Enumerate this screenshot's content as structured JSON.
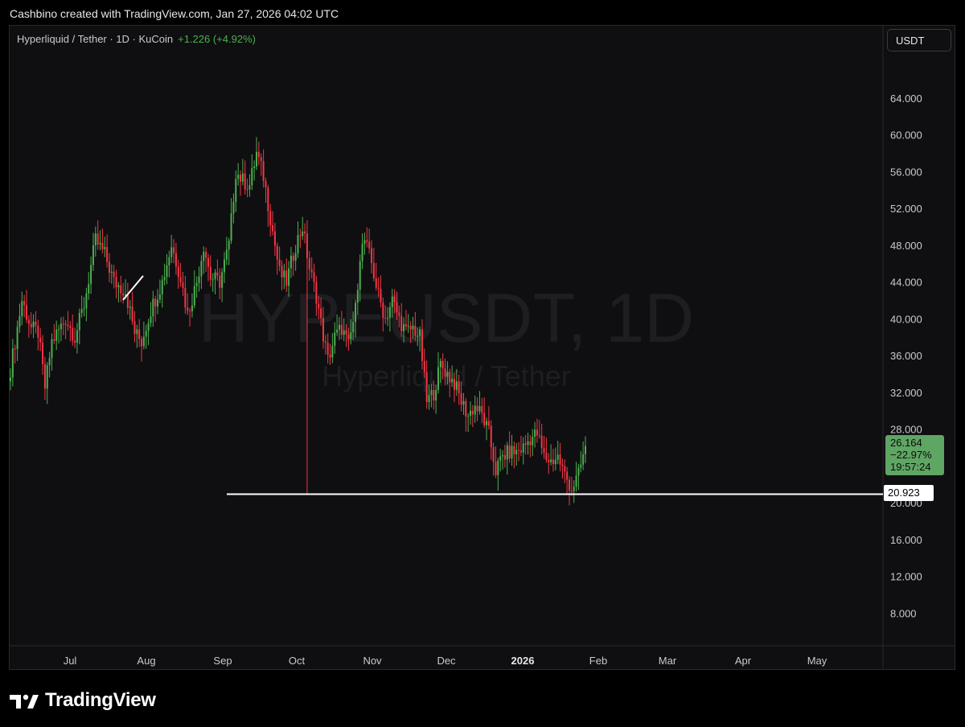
{
  "header": {
    "attribution": "Cashbino created with TradingView.com, Jan 27, 2026 04:02 UTC"
  },
  "legend": {
    "symbol": "Hyperliquid / Tether · 1D · KuCoin",
    "change": "+1.226 (+4.92%)"
  },
  "watermark": {
    "ticker": "HYPEUSDT, 1D",
    "name": "Hyperliquid / Tether"
  },
  "unit_label": "USDT",
  "price_tag": {
    "price": "26.164",
    "change_pct": "−22.97%",
    "countdown": "19:57:24"
  },
  "level_tag": "20.923",
  "footer": {
    "brand": "TradingView"
  },
  "colors": {
    "background": "#0f0f11",
    "up": "#4caf50",
    "down": "#f23645",
    "level_line": "#ffffff",
    "price_tag_bg": "#5fa564"
  },
  "chart_data": {
    "type": "candlestick",
    "title": "Hyperliquid / Tether · 1D · KuCoin",
    "ylabel": "USDT",
    "ylim": [
      4.0,
      68.0
    ],
    "y_ticks": [
      "64.000",
      "60.000",
      "56.000",
      "52.000",
      "48.000",
      "44.000",
      "40.000",
      "36.000",
      "32.000",
      "28.000",
      "24.000",
      "20.000",
      "16.000",
      "12.000",
      "8.000"
    ],
    "x_ticks": [
      {
        "label": "Jul",
        "bold": false
      },
      {
        "label": "Aug",
        "bold": false
      },
      {
        "label": "Sep",
        "bold": false
      },
      {
        "label": "Oct",
        "bold": false
      },
      {
        "label": "Nov",
        "bold": false
      },
      {
        "label": "Dec",
        "bold": false
      },
      {
        "label": "2026",
        "bold": true
      },
      {
        "label": "Feb",
        "bold": false
      },
      {
        "label": "Mar",
        "bold": false
      },
      {
        "label": "Apr",
        "bold": false
      },
      {
        "label": "May",
        "bold": false
      }
    ],
    "price_path": [
      [
        0,
        34.5
      ],
      [
        5,
        42.0
      ],
      [
        9,
        39.0
      ],
      [
        12,
        38.5
      ],
      [
        15,
        32.5
      ],
      [
        18,
        37.5
      ],
      [
        24,
        40.0
      ],
      [
        28,
        38.0
      ],
      [
        32,
        41.5
      ],
      [
        37,
        48.5
      ],
      [
        41,
        47.0
      ],
      [
        45,
        44.0
      ],
      [
        50,
        43.0
      ],
      [
        54,
        38.5
      ],
      [
        57,
        37.5
      ],
      [
        61,
        41.0
      ],
      [
        66,
        44.0
      ],
      [
        70,
        48.0
      ],
      [
        74,
        44.5
      ],
      [
        77,
        40.5
      ],
      [
        81,
        44.0
      ],
      [
        84,
        48.0
      ],
      [
        87,
        44.5
      ],
      [
        91,
        44.0
      ],
      [
        95,
        48.0
      ],
      [
        98,
        56.0
      ],
      [
        101,
        55.0
      ],
      [
        104,
        54.5
      ],
      [
        107,
        58.0
      ],
      [
        110,
        55.5
      ],
      [
        113,
        51.0
      ],
      [
        117,
        45.0
      ],
      [
        120,
        44.0
      ],
      [
        124,
        48.0
      ],
      [
        127,
        50.0
      ],
      [
        130,
        45.5
      ],
      [
        133,
        42.5
      ],
      [
        135,
        39.5
      ],
      [
        138,
        35.5
      ],
      [
        141,
        38.0
      ],
      [
        144,
        39.0
      ],
      [
        147,
        37.0
      ],
      [
        150,
        41.0
      ],
      [
        152,
        47.0
      ],
      [
        154,
        48.5
      ],
      [
        157,
        46.0
      ],
      [
        160,
        42.5
      ],
      [
        163,
        40.0
      ],
      [
        166,
        42.0
      ],
      [
        169,
        40.0
      ],
      [
        172,
        38.5
      ],
      [
        175,
        39.0
      ],
      [
        178,
        38.0
      ],
      [
        181,
        31.0
      ],
      [
        184,
        32.0
      ],
      [
        187,
        35.0
      ],
      [
        190,
        34.0
      ],
      [
        193,
        33.0
      ],
      [
        196,
        31.0
      ],
      [
        199,
        29.5
      ],
      [
        202,
        30.5
      ],
      [
        205,
        29.5
      ],
      [
        208,
        27.5
      ],
      [
        211,
        23.5
      ],
      [
        214,
        25.0
      ],
      [
        217,
        25.5
      ],
      [
        220,
        25.5
      ],
      [
        223,
        26.0
      ],
      [
        226,
        27.0
      ],
      [
        229,
        27.5
      ],
      [
        232,
        25.0
      ],
      [
        235,
        24.5
      ],
      [
        238,
        25.0
      ],
      [
        241,
        23.0
      ],
      [
        244,
        21.5
      ],
      [
        247,
        23.0
      ],
      [
        250,
        26.164
      ]
    ],
    "wick_low_event": {
      "day": 129,
      "low": 20.923
    },
    "support_level": {
      "value": 20.923,
      "from_day": 92
    }
  }
}
